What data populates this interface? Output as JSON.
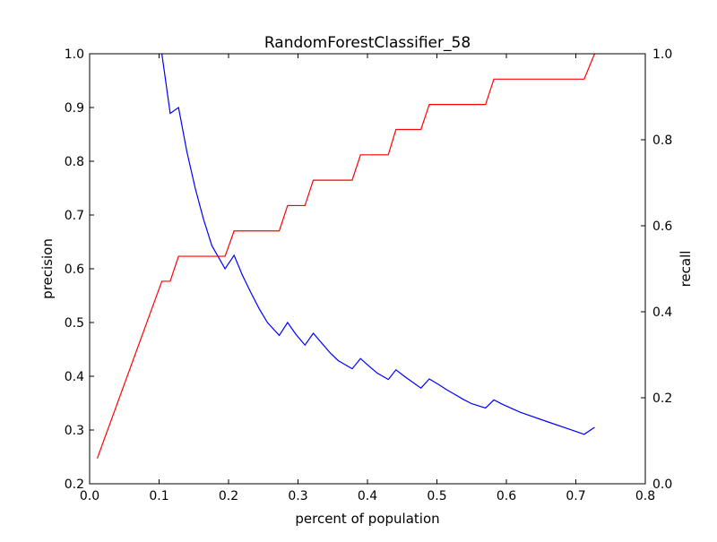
{
  "chart_data": {
    "type": "line",
    "title": "RandomForestClassifier_58",
    "xlabel": "percent of population",
    "xlim": [
      0.0,
      0.8
    ],
    "xticks": [
      "0.0",
      "0.1",
      "0.2",
      "0.3",
      "0.4",
      "0.5",
      "0.6",
      "0.7",
      "0.8"
    ],
    "axes": {
      "left": {
        "label": "precision",
        "color": "#0000ff",
        "ylim": [
          0.2,
          1.0
        ],
        "ticks": [
          "0.2",
          "0.3",
          "0.4",
          "0.5",
          "0.6",
          "0.7",
          "0.8",
          "0.9",
          "1.0"
        ]
      },
      "right": {
        "label": "recall",
        "color": "#ff0000",
        "ylim": [
          0.0,
          1.0
        ],
        "ticks": [
          "0.0",
          "0.2",
          "0.4",
          "0.6",
          "0.8",
          "1.0"
        ]
      }
    },
    "series": [
      {
        "axis": "left",
        "color": "#0000ff",
        "points": [
          [
            0.104,
            1.0
          ],
          [
            0.116,
            0.889
          ],
          [
            0.128,
            0.9
          ],
          [
            0.14,
            0.818
          ],
          [
            0.152,
            0.75
          ],
          [
            0.164,
            0.692
          ],
          [
            0.176,
            0.643
          ],
          [
            0.195,
            0.6
          ],
          [
            0.208,
            0.625
          ],
          [
            0.22,
            0.588
          ],
          [
            0.232,
            0.556
          ],
          [
            0.244,
            0.526
          ],
          [
            0.256,
            0.5
          ],
          [
            0.273,
            0.476
          ],
          [
            0.285,
            0.5
          ],
          [
            0.297,
            0.478
          ],
          [
            0.31,
            0.458
          ],
          [
            0.322,
            0.48
          ],
          [
            0.334,
            0.462
          ],
          [
            0.346,
            0.444
          ],
          [
            0.358,
            0.429
          ],
          [
            0.378,
            0.414
          ],
          [
            0.39,
            0.433
          ],
          [
            0.402,
            0.419
          ],
          [
            0.414,
            0.406
          ],
          [
            0.43,
            0.394
          ],
          [
            0.441,
            0.412
          ],
          [
            0.453,
            0.4
          ],
          [
            0.465,
            0.389
          ],
          [
            0.477,
            0.378
          ],
          [
            0.489,
            0.395
          ],
          [
            0.502,
            0.385
          ],
          [
            0.514,
            0.375
          ],
          [
            0.526,
            0.366
          ],
          [
            0.538,
            0.357
          ],
          [
            0.55,
            0.349
          ],
          [
            0.57,
            0.341
          ],
          [
            0.582,
            0.356
          ],
          [
            0.594,
            0.348
          ],
          [
            0.62,
            0.333
          ],
          [
            0.66,
            0.315
          ],
          [
            0.712,
            0.292
          ],
          [
            0.727,
            0.305
          ]
        ]
      },
      {
        "axis": "right",
        "color": "#ff0000",
        "points": [
          [
            0.011,
            0.059
          ],
          [
            0.104,
            0.471
          ],
          [
            0.116,
            0.471
          ],
          [
            0.128,
            0.529
          ],
          [
            0.195,
            0.529
          ],
          [
            0.208,
            0.588
          ],
          [
            0.273,
            0.588
          ],
          [
            0.285,
            0.647
          ],
          [
            0.31,
            0.647
          ],
          [
            0.322,
            0.706
          ],
          [
            0.378,
            0.706
          ],
          [
            0.39,
            0.765
          ],
          [
            0.43,
            0.765
          ],
          [
            0.441,
            0.824
          ],
          [
            0.477,
            0.824
          ],
          [
            0.489,
            0.882
          ],
          [
            0.57,
            0.882
          ],
          [
            0.582,
            0.941
          ],
          [
            0.712,
            0.941
          ],
          [
            0.727,
            1.0
          ]
        ]
      }
    ]
  }
}
